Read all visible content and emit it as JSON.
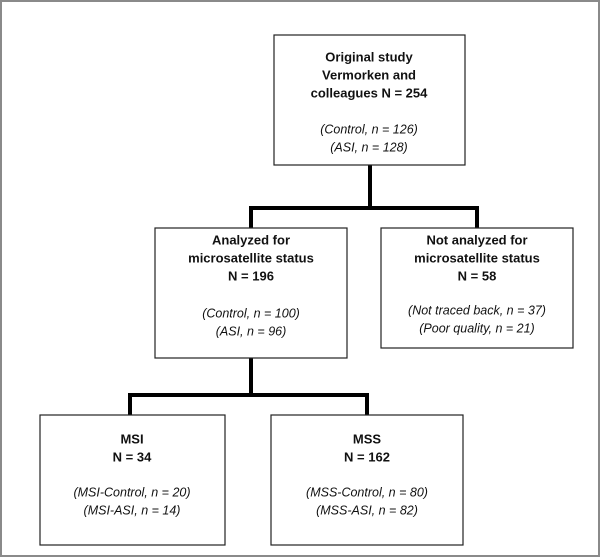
{
  "nodes": [
    {
      "title": [
        "Original study",
        "Vermorken and",
        "colleagues N = 254"
      ],
      "details": [
        "(Control, n = 126)",
        "(ASI, n = 128)"
      ]
    },
    {
      "title": [
        "Analyzed for",
        "microsatellite status",
        "N = 196"
      ],
      "details": [
        "(Control, n = 100)",
        "(ASI, n = 96)"
      ]
    },
    {
      "title": [
        "Not analyzed for",
        "microsatellite status",
        "N = 58"
      ],
      "details": [
        "(Not traced back, n = 37)",
        "(Poor quality, n = 21)"
      ]
    },
    {
      "title": [
        "MSI",
        "N = 34"
      ],
      "details": [
        "(MSI-Control, n = 20)",
        "(MSI-ASI, n = 14)"
      ]
    },
    {
      "title": [
        "MSS",
        "N = 162"
      ],
      "details": [
        "(MSS-Control, n = 80)",
        "(MSS-ASI, n = 82)"
      ]
    }
  ]
}
